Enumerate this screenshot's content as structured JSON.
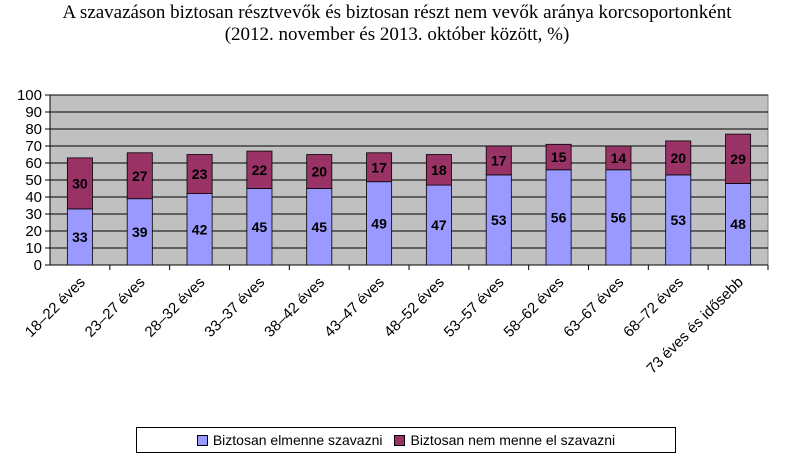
{
  "title_line1": "A szavazáson biztosan résztvevők és biztosan részt nem vevők aránya korcsoportonként",
  "title_line2": "(2012. november és 2013. október között, %)",
  "chart_data": {
    "type": "bar",
    "stacked": true,
    "categories": [
      "18–22 éves",
      "23–27 éves",
      "28–32 éves",
      "33–37 éves",
      "38–42 éves",
      "43–47 éves",
      "48–52 éves",
      "53–57 éves",
      "58–62 éves",
      "63–67 éves",
      "68–72 éves",
      "73 éves és idősebb"
    ],
    "series": [
      {
        "name": "Biztosan elmenne szavazni",
        "values": [
          33,
          39,
          42,
          45,
          45,
          49,
          47,
          53,
          56,
          56,
          53,
          48
        ],
        "color": "#9999FF"
      },
      {
        "name": "Biztosan nem menne el szavazni",
        "values": [
          30,
          27,
          23,
          22,
          20,
          17,
          18,
          17,
          15,
          14,
          20,
          29
        ],
        "color": "#993366"
      }
    ],
    "yticks": [
      0,
      10,
      20,
      30,
      40,
      50,
      60,
      70,
      80,
      90,
      100
    ],
    "ylim": [
      0,
      100
    ],
    "grid": true,
    "plot_background": "#C0C0C0",
    "legend_position": "bottom"
  }
}
